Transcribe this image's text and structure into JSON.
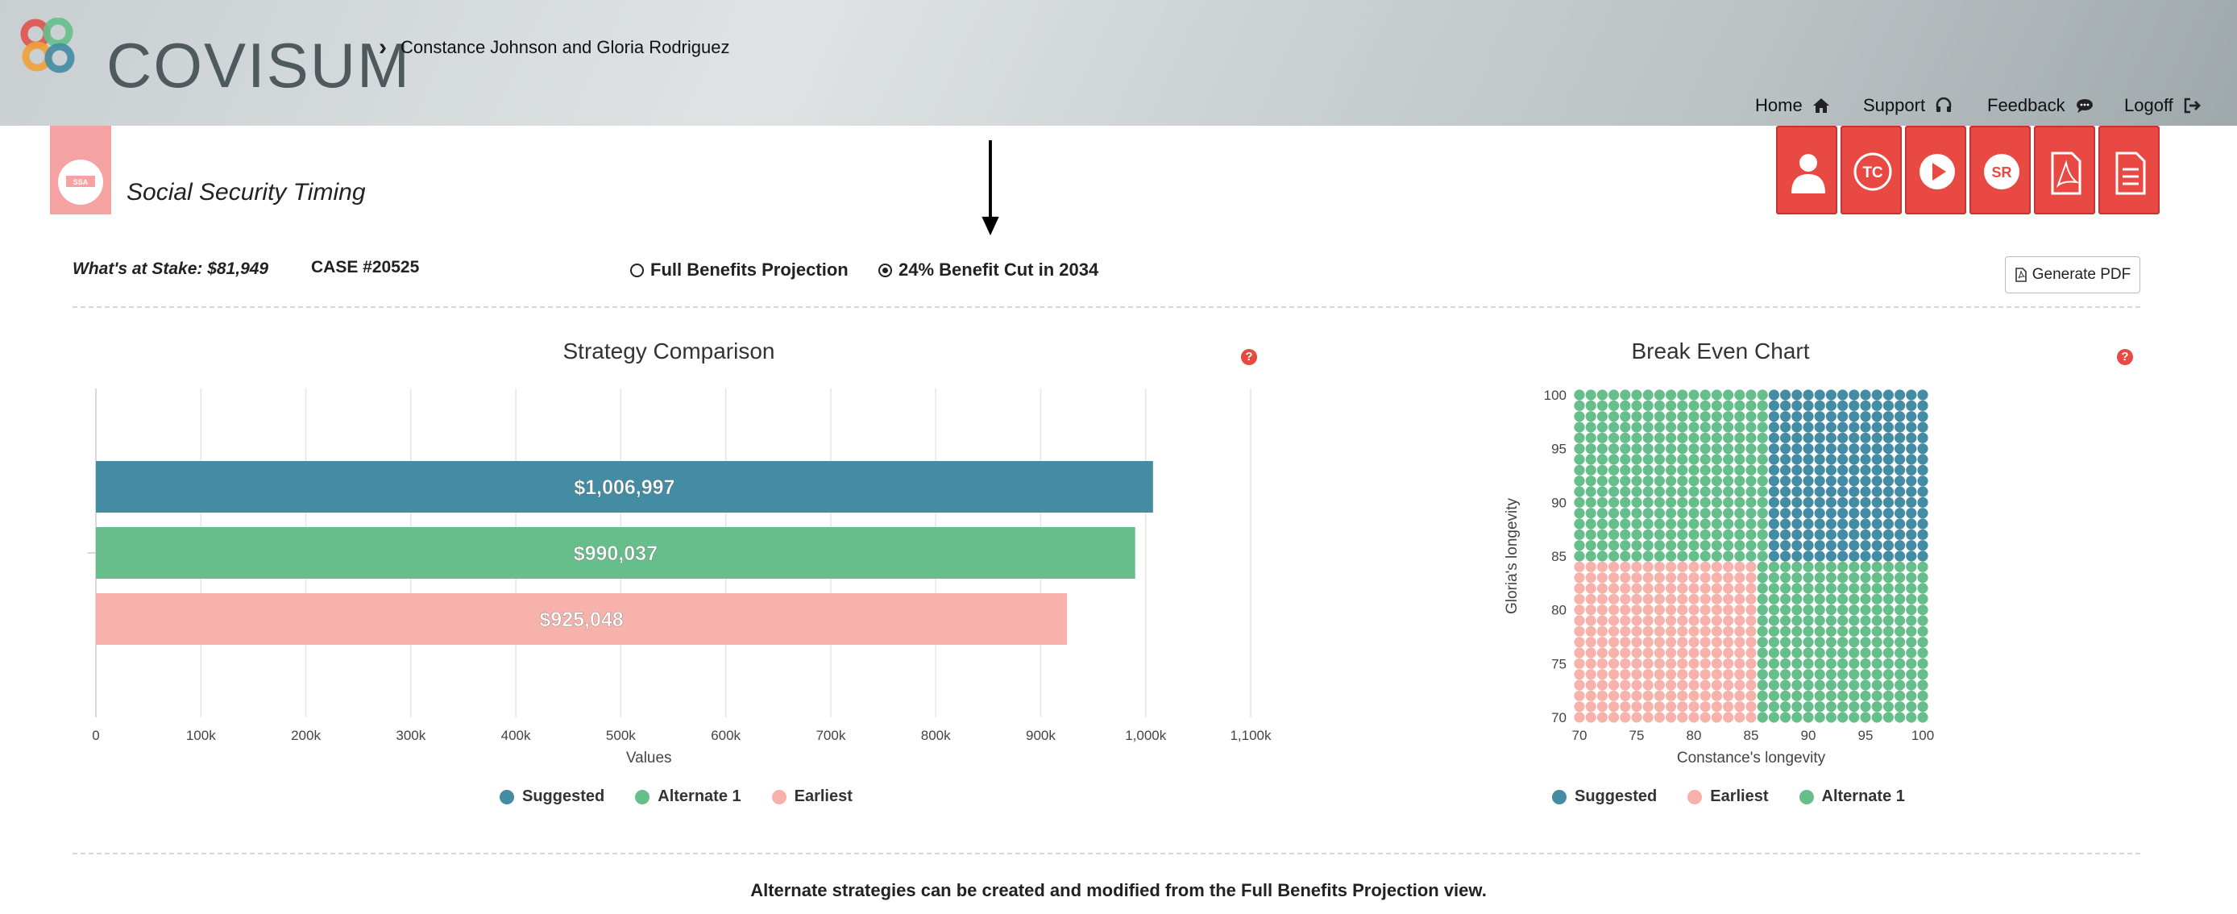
{
  "header": {
    "brand": "COVISUM",
    "breadcrumb": "Constance Johnson and Gloria Rodriguez",
    "nav": [
      {
        "label": "Home",
        "icon": "home-icon"
      },
      {
        "label": "Support",
        "icon": "headset-icon"
      },
      {
        "label": "Feedback",
        "icon": "chat-icon"
      },
      {
        "label": "Logoff",
        "icon": "logout-icon"
      }
    ]
  },
  "page": {
    "title": "Social Security Timing",
    "logo_text": "SSA",
    "toolbar_icons": [
      "person-icon",
      "tc-icon",
      "play-icon",
      "sr-icon",
      "pdf-icon",
      "document-icon"
    ],
    "tc_label": "TC",
    "sr_label": "SR"
  },
  "info": {
    "stake": "What's at Stake: $81,949",
    "case": "CASE #20525",
    "options": [
      {
        "label": "Full Benefits Projection",
        "selected": false
      },
      {
        "label": "24% Benefit Cut in 2034",
        "selected": true
      }
    ],
    "generate_pdf": "Generate PDF"
  },
  "colors": {
    "suggested": "#438ca3",
    "alternate1": "#66bf8a",
    "earliest": "#f7b3ab",
    "accent": "#e84a43"
  },
  "chart_data": [
    {
      "type": "bar",
      "title": "Strategy Comparison",
      "xlabel": "Values",
      "orientation": "horizontal",
      "xlim": [
        0,
        1100000
      ],
      "ticks": [
        "0",
        "100k",
        "200k",
        "300k",
        "400k",
        "500k",
        "600k",
        "700k",
        "800k",
        "900k",
        "1,000k",
        "1,100k"
      ],
      "series": [
        {
          "name": "Suggested",
          "value": 1006997,
          "label": "$1,006,997",
          "color": "#438ca3"
        },
        {
          "name": "Alternate 1",
          "value": 990037,
          "label": "$990,037",
          "color": "#66bf8a"
        },
        {
          "name": "Earliest",
          "value": 925048,
          "label": "$925,048",
          "color": "#f7b3ab"
        }
      ],
      "legend": [
        "Suggested",
        "Alternate 1",
        "Earliest"
      ],
      "legend_position": "bottom"
    },
    {
      "type": "scatter",
      "title": "Break Even Chart",
      "xlabel": "Constance's longevity",
      "ylabel": "Gloria's longevity",
      "xlim": [
        70,
        100
      ],
      "ylim": [
        70,
        100
      ],
      "xticks": [
        "70",
        "75",
        "80",
        "85",
        "90",
        "95",
        "100"
      ],
      "yticks": [
        "70",
        "75",
        "80",
        "85",
        "90",
        "95",
        "100"
      ],
      "regions": [
        {
          "name": "Alternate 1",
          "x": [
            70,
            86
          ],
          "y": [
            85,
            100
          ],
          "color": "#66bf8a"
        },
        {
          "name": "Suggested",
          "x": [
            87,
            100
          ],
          "y": [
            85,
            100
          ],
          "color": "#438ca3"
        },
        {
          "name": "Earliest",
          "x": [
            70,
            85
          ],
          "y": [
            70,
            84
          ],
          "color": "#f7b3ab"
        },
        {
          "name": "Alternate 1",
          "x": [
            86,
            100
          ],
          "y": [
            70,
            84
          ],
          "color": "#66bf8a"
        }
      ],
      "legend": [
        "Suggested",
        "Earliest",
        "Alternate 1"
      ],
      "legend_position": "bottom"
    }
  ],
  "footer": "Alternate strategies can be created and modified from the Full Benefits Projection view."
}
